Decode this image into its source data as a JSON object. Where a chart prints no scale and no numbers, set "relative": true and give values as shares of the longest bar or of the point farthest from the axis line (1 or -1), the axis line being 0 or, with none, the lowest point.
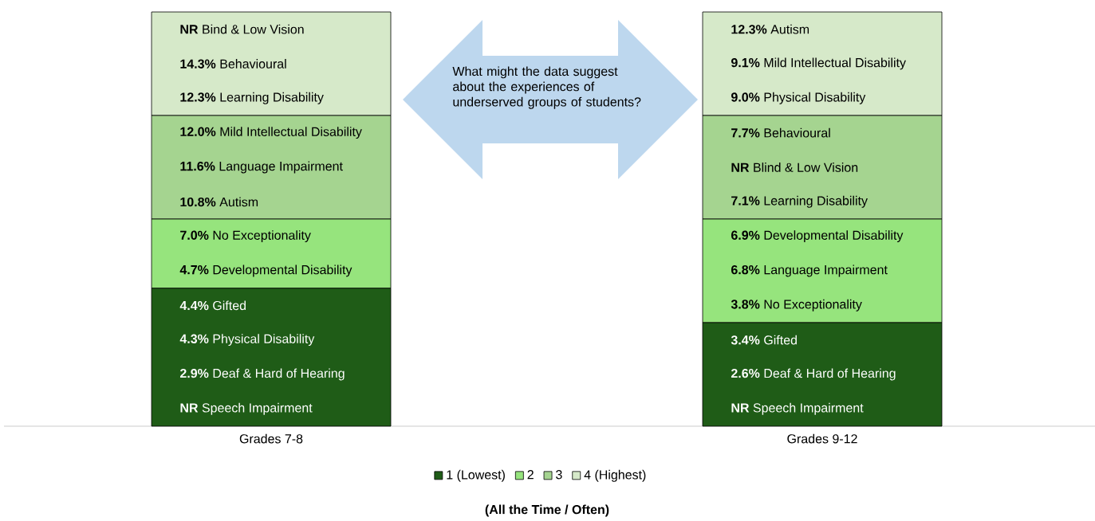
{
  "chart_data": {
    "type": "bar",
    "stacked": true,
    "relative": true,
    "legend": "bottom",
    "categories": [
      "Grades 7-8",
      "Grades 9-12"
    ],
    "series": [
      {
        "name": "1 (Lowest)",
        "color": "#1f5c17",
        "values": [
          0.333,
          0.25
        ]
      },
      {
        "name": "2",
        "color": "#96e47d",
        "values": [
          0.167,
          0.25
        ]
      },
      {
        "name": "3",
        "color": "#a5d490",
        "values": [
          0.25,
          0.25
        ]
      },
      {
        "name": "4 (Highest)",
        "color": "#d6e9c9",
        "values": [
          0.25,
          0.25
        ]
      }
    ],
    "annotations": [
      "What might the data suggest about the experiences of underserved groups of students?",
      "(All the Time / Often)",
      "**NR** Bind & Low Vision",
      "**14.3%** Behavioural",
      "**12.3%** Learning Disability",
      "**12.0%** Mild Intellectual Disability",
      "**11.6%** Language Impairment",
      "**10.8%** Autism",
      "**7.0%** No Exceptionality",
      "**4.7%** Developmental Disability",
      "**4.4%** Gifted",
      "**4.3%** Physical Disability",
      "**2.9%** Deaf & Hard of Hearing",
      "**NR** Speech Impairment",
      "**12.3%** Autism",
      "**9.1%** Mild Intellectual Disability",
      "**9.0%** Physical Disability",
      "**7.7%** Behavioural",
      "**NR** Blind & Low Vision",
      "**7.1%** Learning Disability",
      "**6.9%** Developmental Disability",
      "**6.8%** Language Impairment",
      "**3.8%** No Exceptionality",
      "**3.4%** Gifted",
      "**2.6%** Deaf & Hard of Hearing",
      "**NR** Speech Impairment"
    ]
  }
}
